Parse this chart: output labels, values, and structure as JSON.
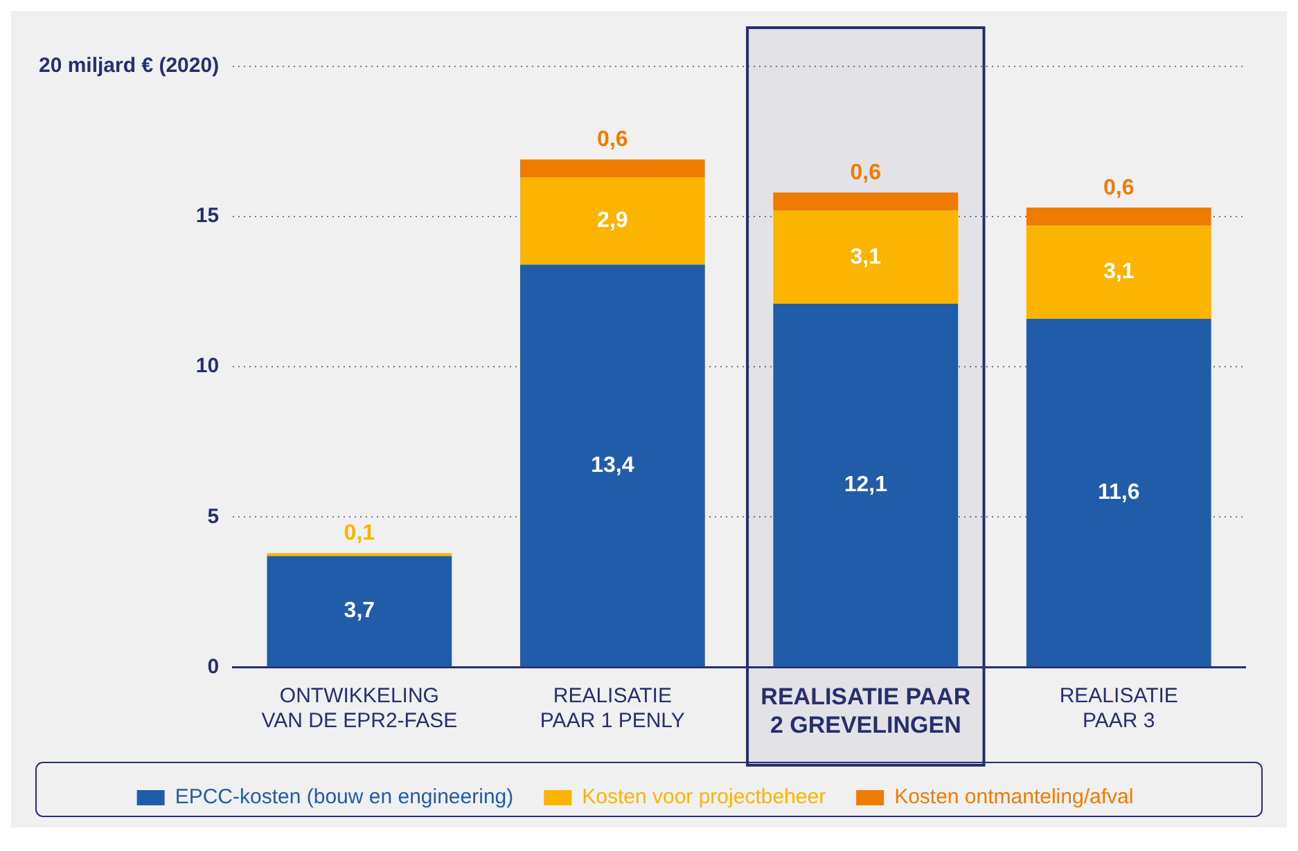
{
  "chart_data": {
    "type": "bar",
    "stacked": true,
    "categories": [
      "ONTWIKKELING VAN DE EPR2-FASE",
      "REALISATIE PAAR 1 PENLY",
      "REALISATIE PAAR 2 GREVELINGEN",
      "REALISATIE PAAR 3"
    ],
    "series": [
      {
        "name": "EPCC-kosten (bouw en engineering)",
        "color": "#215ca8",
        "values": [
          3.7,
          13.4,
          12.1,
          11.6
        ],
        "value_labels": [
          "3,7",
          "13,4",
          "12,1",
          "11,6"
        ]
      },
      {
        "name": "Kosten voor projectbeheer",
        "color": "#fbb500",
        "values": [
          0.1,
          2.9,
          3.1,
          3.1
        ],
        "value_labels": [
          "0,1",
          "2,9",
          "3,1",
          "3,1"
        ]
      },
      {
        "name": "Kosten ontmanteling/afval",
        "color": "#ef7b00",
        "values": [
          null,
          0.6,
          0.6,
          0.6
        ],
        "value_labels": [
          null,
          "0,6",
          "0,6",
          "0,6"
        ]
      }
    ],
    "ylim": [
      0,
      20
    ],
    "yticks": [
      0,
      5,
      10,
      15,
      {
        "value": 20,
        "label": "20 miljard € (2020)"
      }
    ],
    "grid": "y",
    "legend": "bottom",
    "bands": [
      {
        "axis": "x",
        "from": "REALISATIE PAAR 2 GREVELINGEN",
        "to": "REALISATIE PAAR 2 GREVELINGEN",
        "color": "#27306f"
      }
    ]
  }
}
